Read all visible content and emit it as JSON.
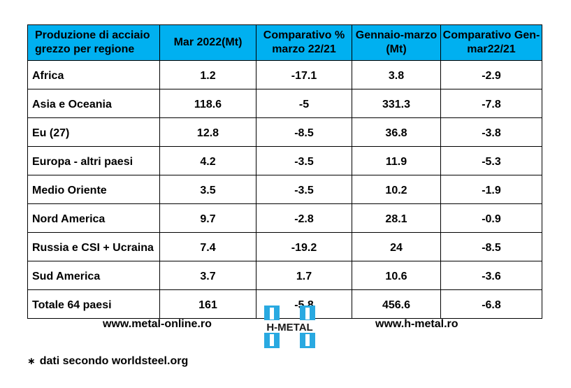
{
  "table": {
    "headers": [
      "Produzione di acciaio grezzo per regione",
      "Mar 2022(Mt)",
      "Comparativo % marzo 22/21",
      "Gennaio-marzo (Mt)",
      "Comparativo Gen-mar22/21"
    ],
    "rows": [
      [
        "Africa",
        "1.2",
        "-17.1",
        "3.8",
        "-2.9"
      ],
      [
        "Asia e Oceania",
        "118.6",
        "-5",
        "331.3",
        "-7.8"
      ],
      [
        "Eu (27)",
        "12.8",
        "-8.5",
        "36.8",
        "-3.8"
      ],
      [
        "Europa - altri paesi",
        "4.2",
        "-3.5",
        "11.9",
        "-5.3"
      ],
      [
        "Medio Oriente",
        "3.5",
        "-3.5",
        "10.2",
        "-1.9"
      ],
      [
        "Nord America",
        "9.7",
        "-2.8",
        "28.1",
        "-0.9"
      ],
      [
        "Russia e CSI + Ucraina",
        "7.4",
        "-19.2",
        "24",
        "-8.5"
      ],
      [
        "Sud America",
        "3.7",
        "1.7",
        "10.6",
        "-3.6"
      ],
      [
        "Totale 64 paesi",
        "161",
        "-5.8",
        "456.6",
        "-6.8"
      ]
    ]
  },
  "footer": {
    "site_left": "www.metal-online.ro",
    "site_right": "www.h-metal.ro",
    "logo_text": "H-METAL",
    "logo_icon": "h-metal-logo",
    "note_star": "∗",
    "note": "dati secondo worldsteel.org"
  },
  "colors": {
    "header_bg": "#00b0f0",
    "logo_blue": "#29a9e1"
  }
}
